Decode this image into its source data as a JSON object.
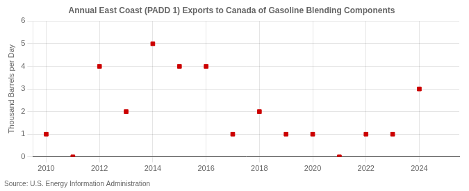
{
  "chart_data": {
    "type": "scatter",
    "title": "Annual East Coast (PADD 1) Exports to Canada of Gasoline Blending Components",
    "ylabel": "Thousand Barrels per Day",
    "source": "Source: U.S. Energy Information Administration",
    "x": [
      2010,
      2011,
      2012,
      2013,
      2014,
      2015,
      2016,
      2017,
      2018,
      2019,
      2020,
      2021,
      2022,
      2023,
      2024
    ],
    "values": [
      1,
      0,
      4,
      2,
      5,
      4,
      4,
      1,
      2,
      1,
      1,
      0,
      1,
      1,
      3
    ],
    "color": "#cc0000",
    "marker": "square",
    "xlim": [
      2009.5,
      2025.5
    ],
    "xticks": [
      2010,
      2012,
      2014,
      2016,
      2018,
      2020,
      2022,
      2024
    ],
    "ylim": [
      0,
      6
    ],
    "yticks": [
      0,
      1,
      2,
      3,
      4,
      5,
      6
    ],
    "grid": true
  }
}
